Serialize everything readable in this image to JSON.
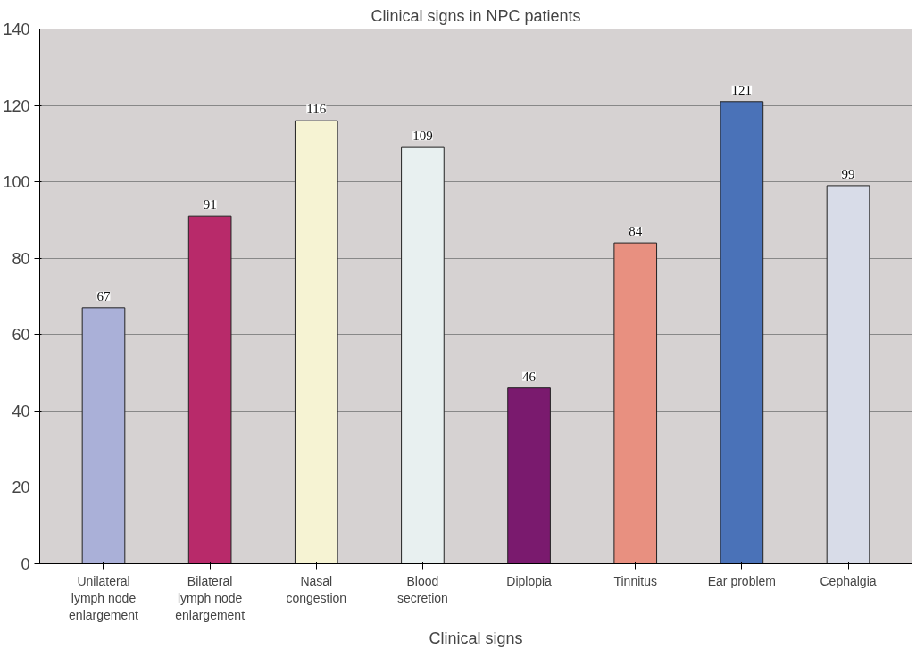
{
  "chart_data": {
    "type": "bar",
    "title": "Clinical signs in NPC patients",
    "xlabel": "Clinical signs",
    "categories": [
      "Unilateral lymph node enlargement",
      "Bilateral lymph node enlargement",
      "Nasal congestion",
      "Blood secretion",
      "Diplopia",
      "Tinnitus",
      "Ear problem",
      "Cephalgia"
    ],
    "values": [
      67,
      91,
      116,
      109,
      46,
      84,
      121,
      99
    ],
    "colors": [
      "#aab0d8",
      "#b82a6a",
      "#f6f3d3",
      "#e8f0f0",
      "#7a1a6e",
      "#e89080",
      "#4a72b8",
      "#d8dce8"
    ],
    "ylim": [
      0,
      140
    ],
    "yticks": [
      0,
      20,
      40,
      60,
      80,
      100,
      120,
      140
    ],
    "grid": "y",
    "data_labels": true
  }
}
